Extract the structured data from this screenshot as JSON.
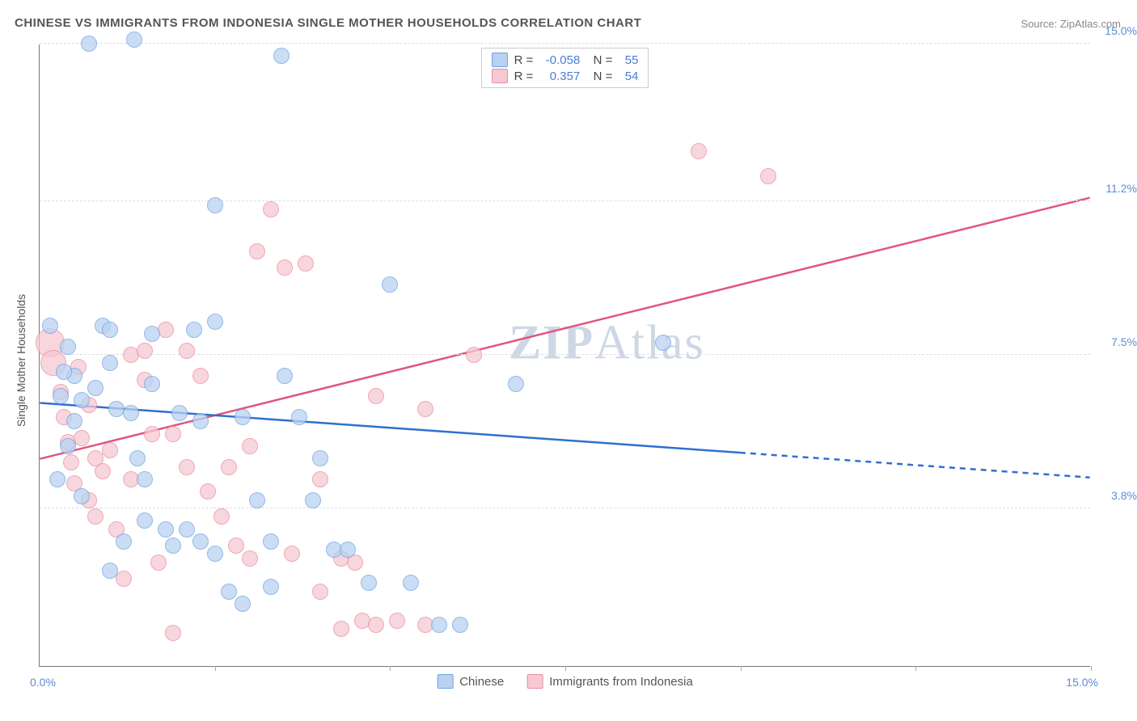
{
  "title": "CHINESE VS IMMIGRANTS FROM INDONESIA SINGLE MOTHER HOUSEHOLDS CORRELATION CHART",
  "source": "Source: ZipAtlas.com",
  "ylabel": "Single Mother Households",
  "watermark_a": "ZIP",
  "watermark_b": "Atlas",
  "axes": {
    "xlim": [
      0,
      15
    ],
    "ylim": [
      0,
      15
    ],
    "xticks": [
      0,
      2.5,
      5,
      7.5,
      10,
      12.5,
      15
    ],
    "yticks": [
      3.8,
      7.5,
      11.2,
      15.0
    ],
    "x_left_label": "0.0%",
    "x_right_label": "15.0%",
    "ytick_labels": [
      "3.8%",
      "7.5%",
      "11.2%",
      "15.0%"
    ],
    "grid_color": "#dddddd",
    "axis_color": "#777777"
  },
  "series": {
    "a": {
      "label": "Chinese",
      "fill": "#b9d2f1",
      "stroke": "#6fa3e0",
      "line_color": "#2f6fd0",
      "R": "-0.058",
      "N": "55",
      "marker_radius": 10,
      "trend": {
        "x1": 0,
        "y1": 6.35,
        "x2_solid": 10.0,
        "y2_solid": 5.15,
        "x2_dash": 15,
        "y2_dash": 4.55
      },
      "points": [
        {
          "x": 0.15,
          "y": 8.2
        },
        {
          "x": 0.7,
          "y": 15.0
        },
        {
          "x": 1.35,
          "y": 15.1
        },
        {
          "x": 3.45,
          "y": 14.7
        },
        {
          "x": 0.4,
          "y": 7.7
        },
        {
          "x": 0.5,
          "y": 7.0
        },
        {
          "x": 0.6,
          "y": 6.4
        },
        {
          "x": 0.5,
          "y": 5.9
        },
        {
          "x": 0.9,
          "y": 8.2
        },
        {
          "x": 1.0,
          "y": 7.3
        },
        {
          "x": 1.1,
          "y": 6.2
        },
        {
          "x": 1.3,
          "y": 6.1
        },
        {
          "x": 1.4,
          "y": 5.0
        },
        {
          "x": 1.5,
          "y": 4.5
        },
        {
          "x": 1.5,
          "y": 3.5
        },
        {
          "x": 1.6,
          "y": 6.8
        },
        {
          "x": 1.6,
          "y": 8.0
        },
        {
          "x": 1.8,
          "y": 3.3
        },
        {
          "x": 1.9,
          "y": 2.9
        },
        {
          "x": 2.0,
          "y": 6.1
        },
        {
          "x": 2.2,
          "y": 8.1
        },
        {
          "x": 2.3,
          "y": 5.9
        },
        {
          "x": 2.3,
          "y": 3.0
        },
        {
          "x": 2.5,
          "y": 11.1
        },
        {
          "x": 2.5,
          "y": 8.3
        },
        {
          "x": 2.5,
          "y": 2.7
        },
        {
          "x": 2.7,
          "y": 1.8
        },
        {
          "x": 2.9,
          "y": 6.0
        },
        {
          "x": 2.9,
          "y": 1.5
        },
        {
          "x": 3.1,
          "y": 4.0
        },
        {
          "x": 3.3,
          "y": 3.0
        },
        {
          "x": 3.5,
          "y": 7.0
        },
        {
          "x": 3.7,
          "y": 6.0
        },
        {
          "x": 3.9,
          "y": 4.0
        },
        {
          "x": 4.0,
          "y": 5.0
        },
        {
          "x": 4.2,
          "y": 2.8
        },
        {
          "x": 4.4,
          "y": 2.8
        },
        {
          "x": 4.7,
          "y": 2.0
        },
        {
          "x": 5.0,
          "y": 9.2
        },
        {
          "x": 5.3,
          "y": 2.0
        },
        {
          "x": 5.7,
          "y": 1.0
        },
        {
          "x": 6.0,
          "y": 1.0
        },
        {
          "x": 6.8,
          "y": 6.8
        },
        {
          "x": 1.0,
          "y": 2.3
        },
        {
          "x": 0.3,
          "y": 6.5
        },
        {
          "x": 0.4,
          "y": 5.3
        },
        {
          "x": 0.6,
          "y": 4.1
        },
        {
          "x": 1.2,
          "y": 3.0
        },
        {
          "x": 1.0,
          "y": 8.1
        },
        {
          "x": 0.8,
          "y": 6.7
        },
        {
          "x": 2.1,
          "y": 3.3
        },
        {
          "x": 3.3,
          "y": 1.9
        },
        {
          "x": 8.9,
          "y": 7.8
        },
        {
          "x": 0.25,
          "y": 4.5
        },
        {
          "x": 0.35,
          "y": 7.1
        }
      ]
    },
    "b": {
      "label": "Immigrants from Indonesia",
      "fill": "#f6c9d2",
      "stroke": "#e98ba1",
      "line_color": "#e0567f",
      "R": "0.357",
      "N": "54",
      "marker_radius": 10,
      "trend": {
        "x1": 0,
        "y1": 5.0,
        "x2_solid": 15,
        "y2_solid": 11.3,
        "x2_dash": 15,
        "y2_dash": 11.3
      },
      "points": [
        {
          "x": 0.15,
          "y": 7.8,
          "r": 18
        },
        {
          "x": 0.2,
          "y": 7.3,
          "r": 16
        },
        {
          "x": 0.3,
          "y": 6.6
        },
        {
          "x": 0.35,
          "y": 6.0
        },
        {
          "x": 0.4,
          "y": 5.4
        },
        {
          "x": 0.45,
          "y": 4.9
        },
        {
          "x": 0.5,
          "y": 4.4
        },
        {
          "x": 0.6,
          "y": 5.5
        },
        {
          "x": 0.7,
          "y": 4.0
        },
        {
          "x": 0.8,
          "y": 3.6
        },
        {
          "x": 0.9,
          "y": 4.7
        },
        {
          "x": 1.0,
          "y": 5.2
        },
        {
          "x": 1.1,
          "y": 3.3
        },
        {
          "x": 1.3,
          "y": 7.5
        },
        {
          "x": 1.3,
          "y": 4.5
        },
        {
          "x": 1.5,
          "y": 7.6
        },
        {
          "x": 1.5,
          "y": 6.9
        },
        {
          "x": 1.6,
          "y": 5.6
        },
        {
          "x": 1.7,
          "y": 2.5
        },
        {
          "x": 1.9,
          "y": 5.6
        },
        {
          "x": 1.9,
          "y": 0.8
        },
        {
          "x": 2.1,
          "y": 7.6
        },
        {
          "x": 2.1,
          "y": 4.8
        },
        {
          "x": 2.3,
          "y": 7.0
        },
        {
          "x": 2.4,
          "y": 4.2
        },
        {
          "x": 2.7,
          "y": 4.8
        },
        {
          "x": 2.8,
          "y": 2.9
        },
        {
          "x": 3.0,
          "y": 5.3
        },
        {
          "x": 3.0,
          "y": 2.6
        },
        {
          "x": 3.1,
          "y": 10.0
        },
        {
          "x": 3.3,
          "y": 11.0
        },
        {
          "x": 3.5,
          "y": 9.6
        },
        {
          "x": 3.6,
          "y": 2.7
        },
        {
          "x": 4.0,
          "y": 4.5
        },
        {
          "x": 4.0,
          "y": 1.8
        },
        {
          "x": 4.3,
          "y": 2.6
        },
        {
          "x": 4.3,
          "y": 0.9
        },
        {
          "x": 4.5,
          "y": 2.5
        },
        {
          "x": 4.6,
          "y": 1.1
        },
        {
          "x": 4.8,
          "y": 6.5
        },
        {
          "x": 4.8,
          "y": 1.0
        },
        {
          "x": 5.1,
          "y": 1.1
        },
        {
          "x": 5.5,
          "y": 6.2
        },
        {
          "x": 5.5,
          "y": 1.0
        },
        {
          "x": 6.2,
          "y": 7.5
        },
        {
          "x": 9.4,
          "y": 12.4
        },
        {
          "x": 10.4,
          "y": 11.8
        },
        {
          "x": 0.55,
          "y": 7.2
        },
        {
          "x": 0.7,
          "y": 6.3
        },
        {
          "x": 0.8,
          "y": 5.0
        },
        {
          "x": 2.6,
          "y": 3.6
        },
        {
          "x": 1.2,
          "y": 2.1
        },
        {
          "x": 1.8,
          "y": 8.1
        },
        {
          "x": 3.8,
          "y": 9.7
        }
      ]
    }
  },
  "colors": {
    "ylabel": "#555555",
    "tick_text": "#5b8cd6",
    "watermark": "#cdd7e6"
  }
}
